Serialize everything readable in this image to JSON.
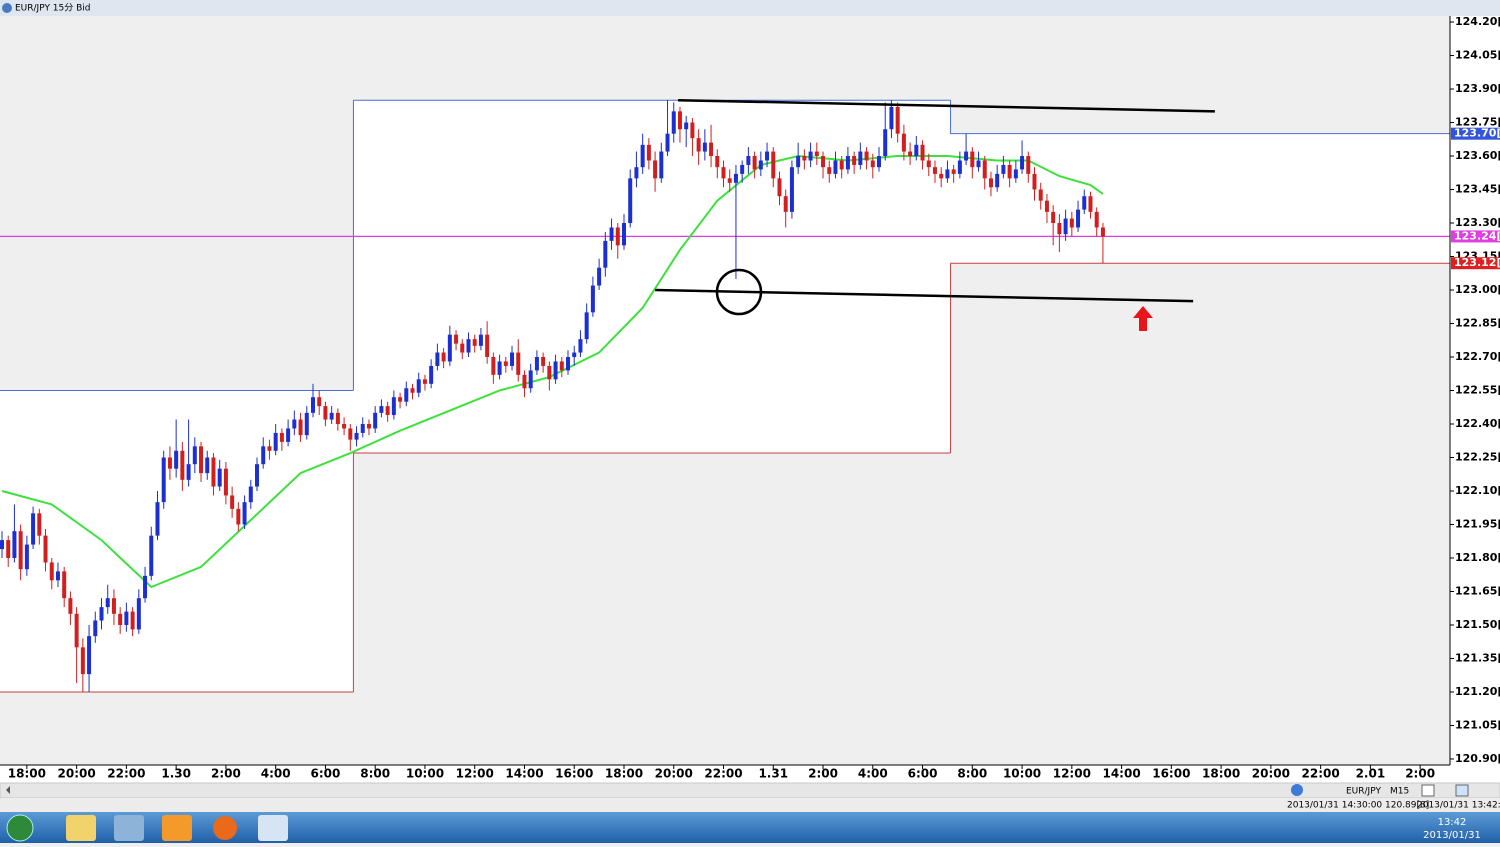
{
  "window": {
    "title": "EUR/JPY 15分 Bid",
    "symbol": "EUR/JPY",
    "timeframe": "M15",
    "status_left": "2013/01/31 14:30:00 120.89[8]",
    "status_right": "2013/01/31 13:42:22"
  },
  "taskbar": {
    "time": "13:42",
    "date": "2013/01/31"
  },
  "chart_data": {
    "type": "candlestick",
    "up_color": "#1c2fd0",
    "down_color": "#d11f1f",
    "xlim": [
      -0.32,
      232.8
    ],
    "ylim": [
      120.873,
      124.227
    ],
    "yticks": [
      {
        "value": 124.2,
        "label": "124.20[0"
      },
      {
        "value": 124.05,
        "label": "124.05[0"
      },
      {
        "value": 123.9,
        "label": "123.90[0"
      },
      {
        "value": 123.75,
        "label": "123.75[0"
      },
      {
        "value": 123.6,
        "label": "123.60[0"
      },
      {
        "value": 123.45,
        "label": "123.45[0"
      },
      {
        "value": 123.3,
        "label": "123.30[0"
      },
      {
        "value": 123.15,
        "label": "123.15[0"
      },
      {
        "value": 123.0,
        "label": "123.00[0"
      },
      {
        "value": 122.85,
        "label": "122.85[0"
      },
      {
        "value": 122.7,
        "label": "122.70[0"
      },
      {
        "value": 122.55,
        "label": "122.55[0"
      },
      {
        "value": 122.4,
        "label": "122.40[0"
      },
      {
        "value": 122.25,
        "label": "122.25[0"
      },
      {
        "value": 122.1,
        "label": "122.10[0"
      },
      {
        "value": 121.95,
        "label": "121.95[0"
      },
      {
        "value": 121.8,
        "label": "121.80[0"
      },
      {
        "value": 121.65,
        "label": "121.65[0"
      },
      {
        "value": 121.5,
        "label": "121.50[0"
      },
      {
        "value": 121.35,
        "label": "121.35[0"
      },
      {
        "value": 121.2,
        "label": "121.20[0"
      },
      {
        "value": 121.05,
        "label": "121.05[0"
      },
      {
        "value": 120.9,
        "label": "120.90[0"
      }
    ],
    "xticks": [
      {
        "value": 4,
        "label": "18:00"
      },
      {
        "value": 12,
        "label": "20:00"
      },
      {
        "value": 20,
        "label": "22:00"
      },
      {
        "value": 28,
        "label": "1.30"
      },
      {
        "value": 36,
        "label": "2:00"
      },
      {
        "value": 44,
        "label": "4:00"
      },
      {
        "value": 52,
        "label": "6:00"
      },
      {
        "value": 60,
        "label": "8:00"
      },
      {
        "value": 68,
        "label": "10:00"
      },
      {
        "value": 76,
        "label": "12:00"
      },
      {
        "value": 84,
        "label": "14:00"
      },
      {
        "value": 92,
        "label": "16:00"
      },
      {
        "value": 100,
        "label": "18:00"
      },
      {
        "value": 108,
        "label": "20:00"
      },
      {
        "value": 116,
        "label": "22:00"
      },
      {
        "value": 124,
        "label": "1.31"
      },
      {
        "value": 132,
        "label": "2:00"
      },
      {
        "value": 140,
        "label": "4:00"
      },
      {
        "value": 148,
        "label": "6:00"
      },
      {
        "value": 156,
        "label": "8:00"
      },
      {
        "value": 164,
        "label": "10:00"
      },
      {
        "value": 172,
        "label": "12:00"
      },
      {
        "value": 180,
        "label": "14:00"
      },
      {
        "value": 188,
        "label": "16:00"
      },
      {
        "value": 196,
        "label": "18:00"
      },
      {
        "value": 204,
        "label": "20:00"
      },
      {
        "value": 212,
        "label": "22:00"
      },
      {
        "value": 220,
        "label": "2.01"
      },
      {
        "value": 228,
        "label": "2:00"
      }
    ],
    "daily_high": {
      "color": "#4a6fd0",
      "breaks": [
        56.5,
        152.5
      ],
      "values": [
        122.55,
        123.85,
        123.7
      ]
    },
    "daily_low": {
      "color": "#c84040",
      "breaks": [
        56.5,
        152.5
      ],
      "values": [
        121.2,
        122.27,
        123.12
      ]
    },
    "price_tags": [
      {
        "value": 123.7,
        "label": "123.70[3",
        "color": "#3355dd",
        "line": false
      },
      {
        "value": 123.24,
        "label": "123.24[2",
        "color": "#e03ee0",
        "line": true
      },
      {
        "value": 123.12,
        "label": "123.12[6",
        "color": "#e02020",
        "line": false
      }
    ],
    "trend_lines": [
      {
        "x": [
          108.7,
          195
        ],
        "y": [
          123.85,
          123.8
        ]
      },
      {
        "x": [
          105,
          191.5
        ],
        "y": [
          123.0,
          122.95
        ]
      }
    ],
    "ma": {
      "color": "#3ee03e",
      "x": [
        0,
        8,
        16,
        24,
        32,
        40,
        48,
        56,
        64,
        72,
        80,
        88,
        96,
        103,
        109,
        115,
        122,
        128,
        136,
        144,
        152,
        160,
        165,
        170,
        175,
        177
      ],
      "values": [
        122.1,
        122.04,
        121.88,
        121.67,
        121.76,
        121.97,
        122.18,
        122.27,
        122.37,
        122.46,
        122.55,
        122.61,
        122.72,
        122.92,
        123.18,
        123.4,
        123.56,
        123.6,
        123.58,
        123.6,
        123.6,
        123.58,
        123.58,
        123.51,
        123.47,
        123.43
      ]
    },
    "ohlc": [
      [
        121.84,
        121.92,
        121.8,
        121.88
      ],
      [
        121.88,
        121.9,
        121.76,
        121.8
      ],
      [
        121.8,
        122.04,
        121.78,
        121.92
      ],
      [
        121.92,
        121.95,
        121.7,
        121.75
      ],
      [
        121.75,
        121.9,
        121.72,
        121.86
      ],
      [
        121.86,
        122.03,
        121.84,
        122.0
      ],
      [
        122.0,
        122.02,
        121.86,
        121.9
      ],
      [
        121.9,
        121.93,
        121.74,
        121.78
      ],
      [
        121.78,
        121.8,
        121.66,
        121.7
      ],
      [
        121.7,
        121.78,
        121.67,
        121.74
      ],
      [
        121.74,
        121.76,
        121.58,
        121.62
      ],
      [
        121.62,
        121.65,
        121.5,
        121.55
      ],
      [
        121.55,
        121.58,
        121.24,
        121.4
      ],
      [
        121.4,
        121.44,
        121.2,
        121.28
      ],
      [
        121.28,
        121.5,
        121.2,
        121.45
      ],
      [
        121.45,
        121.56,
        121.42,
        121.52
      ],
      [
        121.52,
        121.62,
        121.48,
        121.58
      ],
      [
        121.58,
        121.68,
        121.55,
        121.62
      ],
      [
        121.62,
        121.66,
        121.5,
        121.55
      ],
      [
        121.55,
        121.58,
        121.46,
        121.5
      ],
      [
        121.5,
        121.6,
        121.47,
        121.56
      ],
      [
        121.56,
        121.58,
        121.45,
        121.48
      ],
      [
        121.48,
        121.66,
        121.46,
        121.62
      ],
      [
        121.62,
        121.76,
        121.6,
        121.72
      ],
      [
        121.72,
        121.94,
        121.7,
        121.9
      ],
      [
        121.9,
        122.1,
        121.88,
        122.05
      ],
      [
        122.05,
        122.28,
        122.02,
        122.25
      ],
      [
        122.25,
        122.3,
        122.15,
        122.2
      ],
      [
        122.2,
        122.42,
        122.16,
        122.28
      ],
      [
        122.28,
        122.32,
        122.1,
        122.15
      ],
      [
        122.15,
        122.42,
        122.12,
        122.22
      ],
      [
        122.22,
        122.34,
        122.18,
        122.3
      ],
      [
        122.3,
        122.32,
        122.14,
        122.18
      ],
      [
        122.18,
        122.28,
        122.15,
        122.25
      ],
      [
        122.25,
        122.27,
        122.08,
        122.12
      ],
      [
        122.12,
        122.24,
        122.1,
        122.2
      ],
      [
        122.2,
        122.23,
        122.04,
        122.08
      ],
      [
        122.08,
        122.12,
        121.98,
        122.02
      ],
      [
        122.02,
        122.05,
        121.92,
        121.95
      ],
      [
        121.95,
        122.08,
        121.93,
        122.05
      ],
      [
        122.05,
        122.15,
        122.02,
        122.12
      ],
      [
        122.12,
        122.25,
        122.1,
        122.22
      ],
      [
        122.22,
        122.34,
        122.2,
        122.3
      ],
      [
        122.3,
        122.33,
        122.24,
        122.28
      ],
      [
        122.28,
        122.4,
        122.26,
        122.36
      ],
      [
        122.36,
        122.38,
        122.28,
        122.32
      ],
      [
        122.32,
        122.42,
        122.3,
        122.38
      ],
      [
        122.38,
        122.46,
        122.35,
        122.42
      ],
      [
        122.42,
        122.45,
        122.32,
        122.35
      ],
      [
        122.35,
        122.48,
        122.33,
        122.45
      ],
      [
        122.45,
        122.58,
        122.43,
        122.52
      ],
      [
        122.52,
        122.55,
        122.44,
        122.48
      ],
      [
        122.48,
        122.5,
        122.39,
        122.42
      ],
      [
        122.42,
        122.48,
        122.4,
        122.45
      ],
      [
        122.45,
        122.47,
        122.37,
        122.4
      ],
      [
        122.4,
        122.43,
        122.35,
        122.38
      ],
      [
        122.38,
        122.4,
        122.28,
        122.33
      ],
      [
        122.33,
        122.39,
        122.3,
        122.36
      ],
      [
        122.36,
        122.43,
        122.34,
        122.4
      ],
      [
        122.4,
        122.42,
        122.35,
        122.38
      ],
      [
        122.38,
        122.48,
        122.36,
        122.45
      ],
      [
        122.45,
        122.51,
        122.43,
        122.48
      ],
      [
        122.48,
        122.5,
        122.41,
        122.44
      ],
      [
        122.44,
        122.55,
        122.42,
        122.52
      ],
      [
        122.52,
        122.54,
        122.47,
        122.5
      ],
      [
        122.5,
        122.59,
        122.48,
        122.56
      ],
      [
        122.56,
        122.58,
        122.51,
        122.54
      ],
      [
        122.54,
        122.63,
        122.52,
        122.6
      ],
      [
        122.6,
        122.62,
        122.55,
        122.58
      ],
      [
        122.58,
        122.69,
        122.56,
        122.66
      ],
      [
        122.66,
        122.76,
        122.64,
        122.72
      ],
      [
        122.72,
        122.74,
        122.65,
        122.68
      ],
      [
        122.68,
        122.84,
        122.66,
        122.8
      ],
      [
        122.8,
        122.82,
        122.73,
        122.76
      ],
      [
        122.76,
        122.78,
        122.69,
        122.72
      ],
      [
        122.72,
        122.81,
        122.7,
        122.78
      ],
      [
        122.78,
        122.8,
        122.72,
        122.75
      ],
      [
        122.75,
        122.83,
        122.73,
        122.8
      ],
      [
        122.8,
        122.86,
        122.67,
        122.7
      ],
      [
        122.7,
        122.72,
        122.58,
        122.62
      ],
      [
        122.62,
        122.71,
        122.6,
        122.68
      ],
      [
        122.68,
        122.7,
        122.63,
        122.66
      ],
      [
        122.66,
        122.75,
        122.64,
        122.72
      ],
      [
        122.72,
        122.78,
        122.59,
        122.62
      ],
      [
        122.62,
        122.64,
        122.52,
        122.56
      ],
      [
        122.56,
        122.67,
        122.54,
        122.64
      ],
      [
        122.64,
        122.73,
        122.62,
        122.7
      ],
      [
        122.7,
        122.72,
        122.63,
        122.66
      ],
      [
        122.66,
        122.68,
        122.55,
        122.6
      ],
      [
        122.6,
        122.71,
        122.58,
        122.68
      ],
      [
        122.68,
        122.7,
        122.61,
        122.64
      ],
      [
        122.64,
        122.73,
        122.62,
        122.7
      ],
      [
        122.7,
        122.75,
        122.66,
        122.72
      ],
      [
        122.72,
        122.82,
        122.7,
        122.78
      ],
      [
        122.78,
        122.94,
        122.76,
        122.9
      ],
      [
        122.9,
        123.06,
        122.88,
        123.02
      ],
      [
        123.02,
        123.14,
        123.0,
        123.1
      ],
      [
        123.1,
        123.26,
        123.06,
        123.22
      ],
      [
        123.22,
        123.32,
        123.18,
        123.28
      ],
      [
        123.28,
        123.3,
        123.14,
        123.2
      ],
      [
        123.2,
        123.34,
        123.18,
        123.3
      ],
      [
        123.3,
        123.54,
        123.28,
        123.5
      ],
      [
        123.5,
        123.62,
        123.46,
        123.55
      ],
      [
        123.55,
        123.7,
        123.52,
        123.65
      ],
      [
        123.65,
        123.68,
        123.54,
        123.58
      ],
      [
        123.58,
        123.62,
        123.44,
        123.5
      ],
      [
        123.5,
        123.66,
        123.48,
        123.62
      ],
      [
        123.62,
        123.85,
        123.6,
        123.7
      ],
      [
        123.7,
        123.84,
        123.66,
        123.8
      ],
      [
        123.8,
        123.82,
        123.66,
        123.72
      ],
      [
        123.72,
        123.78,
        123.64,
        123.75
      ],
      [
        123.75,
        123.77,
        123.6,
        123.68
      ],
      [
        123.68,
        123.72,
        123.56,
        123.62
      ],
      [
        123.62,
        123.72,
        123.58,
        123.66
      ],
      [
        123.66,
        123.74,
        123.55,
        123.6
      ],
      [
        123.6,
        123.63,
        123.5,
        123.55
      ],
      [
        123.55,
        123.58,
        123.46,
        123.5
      ],
      [
        123.5,
        123.54,
        123.44,
        123.48
      ],
      [
        123.48,
        123.56,
        123.05,
        123.52
      ],
      [
        123.52,
        123.58,
        123.48,
        123.56
      ],
      [
        123.56,
        123.64,
        123.52,
        123.6
      ],
      [
        123.6,
        123.62,
        123.5,
        123.54
      ],
      [
        123.54,
        123.62,
        123.51,
        123.58
      ],
      [
        123.58,
        123.66,
        123.55,
        123.62
      ],
      [
        123.62,
        123.64,
        123.46,
        123.5
      ],
      [
        123.5,
        123.53,
        123.38,
        123.42
      ],
      [
        123.42,
        123.45,
        123.28,
        123.35
      ],
      [
        123.35,
        123.58,
        123.32,
        123.55
      ],
      [
        123.55,
        123.66,
        123.52,
        123.6
      ],
      [
        123.6,
        123.63,
        123.54,
        123.58
      ],
      [
        123.58,
        123.66,
        123.55,
        123.62
      ],
      [
        123.62,
        123.66,
        123.56,
        123.6
      ],
      [
        123.6,
        123.62,
        123.5,
        123.55
      ],
      [
        123.55,
        123.58,
        123.48,
        123.52
      ],
      [
        123.52,
        123.62,
        123.5,
        123.58
      ],
      [
        123.58,
        123.6,
        123.5,
        123.54
      ],
      [
        123.54,
        123.64,
        123.52,
        123.6
      ],
      [
        123.6,
        123.62,
        123.52,
        123.56
      ],
      [
        123.56,
        123.66,
        123.54,
        123.62
      ],
      [
        123.62,
        123.64,
        123.54,
        123.58
      ],
      [
        123.58,
        123.61,
        123.5,
        123.55
      ],
      [
        123.55,
        123.64,
        123.53,
        123.6
      ],
      [
        123.6,
        123.84,
        123.58,
        123.72
      ],
      [
        123.72,
        123.85,
        123.68,
        123.82
      ],
      [
        123.82,
        123.84,
        123.66,
        123.7
      ],
      [
        123.7,
        123.74,
        123.58,
        123.62
      ],
      [
        123.62,
        123.66,
        123.56,
        123.6
      ],
      [
        123.6,
        123.69,
        123.58,
        123.65
      ],
      [
        123.65,
        123.67,
        123.54,
        123.58
      ],
      [
        123.58,
        123.61,
        123.51,
        123.55
      ],
      [
        123.55,
        123.58,
        123.48,
        123.52
      ],
      [
        123.52,
        123.55,
        123.46,
        123.5
      ],
      [
        123.5,
        123.58,
        123.48,
        123.54
      ],
      [
        123.54,
        123.56,
        123.48,
        123.52
      ],
      [
        123.52,
        123.62,
        123.5,
        123.58
      ],
      [
        123.58,
        123.7,
        123.56,
        123.62
      ],
      [
        123.62,
        123.64,
        123.5,
        123.55
      ],
      [
        123.55,
        123.62,
        123.53,
        123.58
      ],
      [
        123.58,
        123.6,
        123.45,
        123.5
      ],
      [
        123.5,
        123.53,
        123.42,
        123.46
      ],
      [
        123.46,
        123.56,
        123.44,
        123.52
      ],
      [
        123.52,
        123.6,
        123.5,
        123.56
      ],
      [
        123.56,
        123.58,
        123.46,
        123.5
      ],
      [
        123.5,
        123.58,
        123.48,
        123.54
      ],
      [
        123.54,
        123.67,
        123.52,
        123.6
      ],
      [
        123.6,
        123.62,
        123.48,
        123.52
      ],
      [
        123.52,
        123.55,
        123.4,
        123.45
      ],
      [
        123.45,
        123.48,
        123.36,
        123.4
      ],
      [
        123.4,
        123.43,
        123.3,
        123.35
      ],
      [
        123.35,
        123.38,
        123.2,
        123.3
      ],
      [
        123.3,
        123.34,
        123.17,
        123.25
      ],
      [
        123.25,
        123.36,
        123.22,
        123.32
      ],
      [
        123.32,
        123.35,
        123.24,
        123.28
      ],
      [
        123.28,
        123.4,
        123.26,
        123.36
      ],
      [
        123.36,
        123.45,
        123.34,
        123.42
      ],
      [
        123.42,
        123.44,
        123.32,
        123.35
      ],
      [
        123.35,
        123.37,
        123.24,
        123.28
      ],
      [
        123.28,
        123.3,
        123.12,
        123.24
      ]
    ]
  }
}
